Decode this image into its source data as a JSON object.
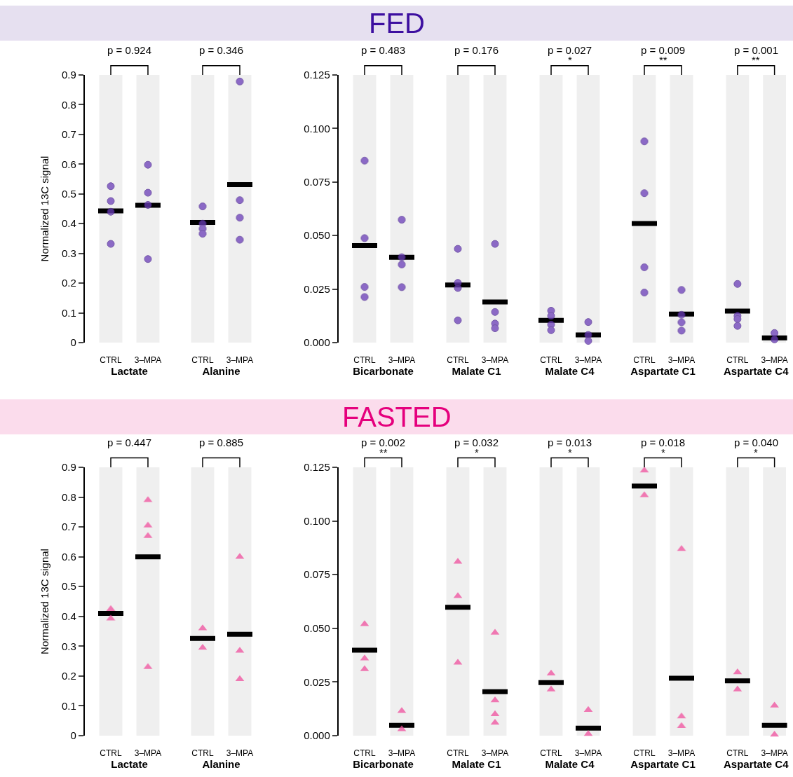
{
  "chart_data": [
    {
      "type": "other",
      "title": "FED",
      "colors": [
        "#e6e0f0",
        "#3d0fa0"
      ]
    },
    {
      "type": "scatter",
      "ylabel": "Normalized 13C signal",
      "xlabel": "Lactate",
      "categories": [
        "CTRL",
        "3–MPA"
      ],
      "annotations": [
        "p = 0.924"
      ],
      "ylim": [
        0,
        0.9
      ],
      "yticks": [
        0,
        0.1,
        0.2,
        0.3,
        0.4,
        0.5,
        0.6,
        0.7,
        0.8,
        0.9
      ],
      "bands": [
        {
          "axis": "x",
          "from": "CTRL",
          "to": "CTRL",
          "color": "#efefef"
        },
        {
          "axis": "x",
          "from": "3–MPA",
          "to": "3–MPA",
          "color": "#efefef"
        }
      ],
      "series": [
        {
          "type": "box",
          "color": "#000000",
          "x": [
            "CTRL",
            "3–MPA"
          ],
          "boxes": [
            {
              "low": 0.443,
              "q1": 0.443,
              "median": 0.443,
              "q3": 0.443,
              "high": 0.443
            },
            {
              "low": 0.462,
              "q1": 0.462,
              "median": 0.462,
              "q3": 0.462,
              "high": 0.462
            }
          ]
        },
        {
          "type": "scatter",
          "marker": "circle",
          "color": "#6a3db8",
          "x": [
            "CTRL",
            "CTRL",
            "CTRL",
            "CTRL",
            "3–MPA",
            "3–MPA",
            "3–MPA",
            "3–MPA"
          ],
          "values": [
            0.526,
            0.476,
            0.44,
            0.332,
            0.598,
            0.504,
            0.463,
            0.281
          ]
        }
      ]
    },
    {
      "type": "scatter",
      "xlabel": "Alanine",
      "categories": [
        "CTRL",
        "3–MPA"
      ],
      "annotations": [
        "p = 0.346"
      ],
      "ylim": [
        0,
        0.9
      ],
      "tick_labels": "x",
      "bands": [
        {
          "axis": "x",
          "from": "CTRL",
          "to": "CTRL",
          "color": "#efefef"
        },
        {
          "axis": "x",
          "from": "3–MPA",
          "to": "3–MPA",
          "color": "#efefef"
        }
      ],
      "series": [
        {
          "type": "box",
          "color": "#000000",
          "x": [
            "CTRL",
            "3–MPA"
          ],
          "boxes": [
            {
              "low": 0.404,
              "q1": 0.404,
              "median": 0.404,
              "q3": 0.404,
              "high": 0.404
            },
            {
              "low": 0.531,
              "q1": 0.531,
              "median": 0.531,
              "q3": 0.531,
              "high": 0.531
            }
          ]
        },
        {
          "type": "scatter",
          "marker": "circle",
          "color": "#6a3db8",
          "x": [
            "CTRL",
            "CTRL",
            "CTRL",
            "CTRL",
            "3–MPA",
            "3–MPA",
            "3–MPA",
            "3–MPA"
          ],
          "values": [
            0.458,
            0.4,
            0.383,
            0.366,
            0.878,
            0.479,
            0.42,
            0.346
          ]
        }
      ]
    },
    {
      "type": "scatter",
      "xlabel": "Bicarbonate",
      "categories": [
        "CTRL",
        "3–MPA"
      ],
      "annotations": [
        "p = 0.483"
      ],
      "ylim": [
        0,
        0.125
      ],
      "yticks": [
        {
          "value": 0,
          "label": "0.000"
        },
        {
          "value": 0.025,
          "label": "0.025"
        },
        {
          "value": 0.05,
          "label": "0.050"
        },
        {
          "value": 0.075,
          "label": "0.075"
        },
        {
          "value": 0.1,
          "label": "0.100"
        },
        {
          "value": 0.125,
          "label": "0.125"
        }
      ],
      "bands": [
        {
          "axis": "x",
          "from": "CTRL",
          "to": "CTRL",
          "color": "#efefef"
        },
        {
          "axis": "x",
          "from": "3–MPA",
          "to": "3–MPA",
          "color": "#efefef"
        }
      ],
      "series": [
        {
          "type": "box",
          "color": "#000000",
          "x": [
            "CTRL",
            "3–MPA"
          ],
          "boxes": [
            {
              "low": 0.0453,
              "q1": 0.0453,
              "median": 0.0453,
              "q3": 0.0453,
              "high": 0.0453
            },
            {
              "low": 0.0398,
              "q1": 0.0398,
              "median": 0.0398,
              "q3": 0.0398,
              "high": 0.0398
            }
          ]
        },
        {
          "type": "scatter",
          "marker": "circle",
          "color": "#6a3db8",
          "x": [
            "CTRL",
            "CTRL",
            "CTRL",
            "CTRL",
            "3–MPA",
            "3–MPA",
            "3–MPA",
            "3–MPA"
          ],
          "values": [
            0.085,
            0.0488,
            0.026,
            0.0213,
            0.0574,
            0.0399,
            0.0365,
            0.0259
          ]
        }
      ]
    },
    {
      "type": "scatter",
      "xlabel": "Malate C1",
      "categories": [
        "CTRL",
        "3–MPA"
      ],
      "annotations": [
        "p = 0.176"
      ],
      "ylim": [
        0,
        0.125
      ],
      "tick_labels": "x",
      "bands": [
        {
          "axis": "x",
          "from": "CTRL",
          "to": "CTRL",
          "color": "#efefef"
        },
        {
          "axis": "x",
          "from": "3–MPA",
          "to": "3–MPA",
          "color": "#efefef"
        }
      ],
      "series": [
        {
          "type": "box",
          "color": "#000000",
          "x": [
            "CTRL",
            "3–MPA"
          ],
          "boxes": [
            {
              "low": 0.0269,
              "q1": 0.0269,
              "median": 0.0269,
              "q3": 0.0269,
              "high": 0.0269
            },
            {
              "low": 0.019,
              "q1": 0.019,
              "median": 0.019,
              "q3": 0.019,
              "high": 0.019
            }
          ]
        },
        {
          "type": "scatter",
          "marker": "circle",
          "color": "#6a3db8",
          "x": [
            "CTRL",
            "CTRL",
            "CTRL",
            "CTRL",
            "3–MPA",
            "3–MPA",
            "3–MPA",
            "3–MPA"
          ],
          "values": [
            0.0438,
            0.0279,
            0.0255,
            0.0104,
            0.0461,
            0.0143,
            0.0089,
            0.0067
          ]
        }
      ]
    },
    {
      "type": "scatter",
      "xlabel": "Malate C4",
      "categories": [
        "CTRL",
        "3–MPA"
      ],
      "annotations": [
        "p = 0.027",
        "*"
      ],
      "ylim": [
        0,
        0.125
      ],
      "tick_labels": "x",
      "bands": [
        {
          "axis": "x",
          "from": "CTRL",
          "to": "CTRL",
          "color": "#efefef"
        },
        {
          "axis": "x",
          "from": "3–MPA",
          "to": "3–MPA",
          "color": "#efefef"
        }
      ],
      "series": [
        {
          "type": "box",
          "color": "#000000",
          "x": [
            "CTRL",
            "3–MPA"
          ],
          "boxes": [
            {
              "low": 0.0104,
              "q1": 0.0104,
              "median": 0.0104,
              "q3": 0.0104,
              "high": 0.0104
            },
            {
              "low": 0.0036,
              "q1": 0.0036,
              "median": 0.0036,
              "q3": 0.0036,
              "high": 0.0036
            }
          ]
        },
        {
          "type": "scatter",
          "marker": "circle",
          "color": "#6a3db8",
          "x": [
            "CTRL",
            "CTRL",
            "CTRL",
            "CTRL",
            "3–MPA",
            "3–MPA",
            "3–MPA"
          ],
          "values": [
            0.0149,
            0.0125,
            0.0084,
            0.0058,
            0.0096,
            0.0036,
            0.0008
          ]
        }
      ]
    },
    {
      "type": "scatter",
      "xlabel": "Aspartate C1",
      "categories": [
        "CTRL",
        "3–MPA"
      ],
      "annotations": [
        "p = 0.009",
        "**"
      ],
      "ylim": [
        0,
        0.125
      ],
      "tick_labels": "x",
      "bands": [
        {
          "axis": "x",
          "from": "CTRL",
          "to": "CTRL",
          "color": "#efefef"
        },
        {
          "axis": "x",
          "from": "3–MPA",
          "to": "3–MPA",
          "color": "#efefef"
        }
      ],
      "series": [
        {
          "type": "box",
          "color": "#000000",
          "x": [
            "CTRL",
            "3–MPA"
          ],
          "boxes": [
            {
              "low": 0.0556,
              "q1": 0.0556,
              "median": 0.0556,
              "q3": 0.0556,
              "high": 0.0556
            },
            {
              "low": 0.0133,
              "q1": 0.0133,
              "median": 0.0133,
              "q3": 0.0133,
              "high": 0.0133
            }
          ]
        },
        {
          "type": "scatter",
          "marker": "circle",
          "color": "#6a3db8",
          "x": [
            "CTRL",
            "CTRL",
            "CTRL",
            "CTRL",
            "3–MPA",
            "3–MPA",
            "3–MPA",
            "3–MPA"
          ],
          "values": [
            0.094,
            0.0698,
            0.0352,
            0.0234,
            0.0246,
            0.013,
            0.0095,
            0.0056
          ]
        }
      ]
    },
    {
      "type": "scatter",
      "xlabel": "Aspartate C4",
      "categories": [
        "CTRL",
        "3–MPA"
      ],
      "annotations": [
        "p = 0.001",
        "**"
      ],
      "ylim": [
        0,
        0.125
      ],
      "tick_labels": "x",
      "bands": [
        {
          "axis": "x",
          "from": "CTRL",
          "to": "CTRL",
          "color": "#efefef"
        },
        {
          "axis": "x",
          "from": "3–MPA",
          "to": "3–MPA",
          "color": "#efefef"
        }
      ],
      "series": [
        {
          "type": "box",
          "color": "#000000",
          "x": [
            "CTRL",
            "3–MPA"
          ],
          "boxes": [
            {
              "low": 0.0147,
              "q1": 0.0147,
              "median": 0.0147,
              "q3": 0.0147,
              "high": 0.0147
            },
            {
              "low": 0.0022,
              "q1": 0.0022,
              "median": 0.0022,
              "q3": 0.0022,
              "high": 0.0022
            }
          ]
        },
        {
          "type": "scatter",
          "marker": "circle",
          "color": "#6a3db8",
          "x": [
            "CTRL",
            "CTRL",
            "CTRL",
            "CTRL",
            "3–MPA",
            "3–MPA"
          ],
          "values": [
            0.0274,
            0.0125,
            0.011,
            0.0078,
            0.0045,
            0.0015
          ]
        }
      ]
    },
    {
      "type": "other",
      "title": "FASTED",
      "colors": [
        "#fbdcec",
        "#e5007d"
      ]
    },
    {
      "type": "scatter",
      "ylabel": "Normalized 13C signal",
      "xlabel": "Lactate",
      "categories": [
        "CTRL",
        "3–MPA"
      ],
      "annotations": [
        "p = 0.447"
      ],
      "ylim": [
        0,
        0.9
      ],
      "yticks": [
        0,
        0.1,
        0.2,
        0.3,
        0.4,
        0.5,
        0.6,
        0.7,
        0.8,
        0.9
      ],
      "bands": [
        {
          "axis": "x",
          "from": "CTRL",
          "to": "CTRL",
          "color": "#efefef"
        },
        {
          "axis": "x",
          "from": "3–MPA",
          "to": "3–MPA",
          "color": "#efefef"
        }
      ],
      "series": [
        {
          "type": "box",
          "color": "#000000",
          "x": [
            "CTRL",
            "3–MPA"
          ],
          "boxes": [
            {
              "low": 0.41,
              "q1": 0.41,
              "median": 0.41,
              "q3": 0.41,
              "high": 0.41
            },
            {
              "low": 0.6,
              "q1": 0.6,
              "median": 0.6,
              "q3": 0.6,
              "high": 0.6
            }
          ]
        },
        {
          "type": "scatter",
          "marker": "triangle",
          "color": "#f0509e",
          "x": [
            "CTRL",
            "CTRL",
            "3–MPA",
            "3–MPA",
            "3–MPA",
            "3–MPA"
          ],
          "values": [
            0.425,
            0.393,
            0.79,
            0.705,
            0.67,
            0.23
          ]
        }
      ]
    },
    {
      "type": "scatter",
      "xlabel": "Alanine",
      "categories": [
        "CTRL",
        "3–MPA"
      ],
      "annotations": [
        "p = 0.885"
      ],
      "ylim": [
        0,
        0.9
      ],
      "tick_labels": "x",
      "bands": [
        {
          "axis": "x",
          "from": "CTRL",
          "to": "CTRL",
          "color": "#efefef"
        },
        {
          "axis": "x",
          "from": "3–MPA",
          "to": "3–MPA",
          "color": "#efefef"
        }
      ],
      "series": [
        {
          "type": "box",
          "color": "#000000",
          "x": [
            "CTRL",
            "3–MPA"
          ],
          "boxes": [
            {
              "low": 0.326,
              "q1": 0.326,
              "median": 0.326,
              "q3": 0.326,
              "high": 0.326
            },
            {
              "low": 0.34,
              "q1": 0.34,
              "median": 0.34,
              "q3": 0.34,
              "high": 0.34
            }
          ]
        },
        {
          "type": "scatter",
          "marker": "triangle",
          "color": "#f0509e",
          "x": [
            "CTRL",
            "CTRL",
            "3–MPA",
            "3–MPA",
            "3–MPA"
          ],
          "values": [
            0.36,
            0.295,
            0.6,
            0.285,
            0.19
          ]
        }
      ]
    },
    {
      "type": "scatter",
      "xlabel": "Bicarbonate",
      "categories": [
        "CTRL",
        "3–MPA"
      ],
      "annotations": [
        "p = 0.002",
        "**"
      ],
      "ylim": [
        0,
        0.125
      ],
      "yticks": [
        {
          "value": 0,
          "label": "0.000"
        },
        {
          "value": 0.025,
          "label": "0.025"
        },
        {
          "value": 0.05,
          "label": "0.050"
        },
        {
          "value": 0.075,
          "label": "0.075"
        },
        {
          "value": 0.1,
          "label": "0.100"
        },
        {
          "value": 0.125,
          "label": "0.125"
        }
      ],
      "bands": [
        {
          "axis": "x",
          "from": "CTRL",
          "to": "CTRL",
          "color": "#efefef"
        },
        {
          "axis": "x",
          "from": "3–MPA",
          "to": "3–MPA",
          "color": "#efefef"
        }
      ],
      "series": [
        {
          "type": "box",
          "color": "#000000",
          "x": [
            "CTRL",
            "3–MPA"
          ],
          "boxes": [
            {
              "low": 0.0398,
              "q1": 0.0398,
              "median": 0.0398,
              "q3": 0.0398,
              "high": 0.0398
            },
            {
              "low": 0.0048,
              "q1": 0.0048,
              "median": 0.0048,
              "q3": 0.0048,
              "high": 0.0048
            }
          ]
        },
        {
          "type": "scatter",
          "marker": "triangle",
          "color": "#f0509e",
          "x": [
            "CTRL",
            "CTRL",
            "CTRL",
            "3–MPA",
            "3–MPA"
          ],
          "values": [
            0.052,
            0.036,
            0.031,
            0.0115,
            0.003
          ]
        }
      ]
    },
    {
      "type": "scatter",
      "xlabel": "Malate C1",
      "categories": [
        "CTRL",
        "3–MPA"
      ],
      "annotations": [
        "p = 0.032",
        "*"
      ],
      "ylim": [
        0,
        0.125
      ],
      "tick_labels": "x",
      "bands": [
        {
          "axis": "x",
          "from": "CTRL",
          "to": "CTRL",
          "color": "#efefef"
        },
        {
          "axis": "x",
          "from": "3–MPA",
          "to": "3–MPA",
          "color": "#efefef"
        }
      ],
      "series": [
        {
          "type": "box",
          "color": "#000000",
          "x": [
            "CTRL",
            "3–MPA"
          ],
          "boxes": [
            {
              "low": 0.0598,
              "q1": 0.0598,
              "median": 0.0598,
              "q3": 0.0598,
              "high": 0.0598
            },
            {
              "low": 0.0205,
              "q1": 0.0205,
              "median": 0.0205,
              "q3": 0.0205,
              "high": 0.0205
            }
          ]
        },
        {
          "type": "scatter",
          "marker": "triangle",
          "color": "#f0509e",
          "x": [
            "CTRL",
            "CTRL",
            "CTRL",
            "3–MPA",
            "3–MPA",
            "3–MPA",
            "3–MPA"
          ],
          "values": [
            0.081,
            0.065,
            0.034,
            0.048,
            0.0165,
            0.01,
            0.006
          ]
        }
      ]
    },
    {
      "type": "scatter",
      "xlabel": "Malate C4",
      "categories": [
        "CTRL",
        "3–MPA"
      ],
      "annotations": [
        "p = 0.013",
        "*"
      ],
      "ylim": [
        0,
        0.125
      ],
      "tick_labels": "x",
      "bands": [
        {
          "axis": "x",
          "from": "CTRL",
          "to": "CTRL",
          "color": "#efefef"
        },
        {
          "axis": "x",
          "from": "3–MPA",
          "to": "3–MPA",
          "color": "#efefef"
        }
      ],
      "series": [
        {
          "type": "box",
          "color": "#000000",
          "x": [
            "CTRL",
            "3–MPA"
          ],
          "boxes": [
            {
              "low": 0.0247,
              "q1": 0.0247,
              "median": 0.0247,
              "q3": 0.0247,
              "high": 0.0247
            },
            {
              "low": 0.0035,
              "q1": 0.0035,
              "median": 0.0035,
              "q3": 0.0035,
              "high": 0.0035
            }
          ]
        },
        {
          "type": "scatter",
          "marker": "triangle",
          "color": "#f0509e",
          "x": [
            "CTRL",
            "CTRL",
            "3–MPA",
            "3–MPA"
          ],
          "values": [
            0.029,
            0.0215,
            0.012,
            0.0008
          ]
        }
      ]
    },
    {
      "type": "scatter",
      "xlabel": "Aspartate C1",
      "categories": [
        "CTRL",
        "3–MPA"
      ],
      "annotations": [
        "p = 0.018",
        "*"
      ],
      "ylim": [
        0,
        0.125
      ],
      "tick_labels": "x",
      "bands": [
        {
          "axis": "x",
          "from": "CTRL",
          "to": "CTRL",
          "color": "#efefef"
        },
        {
          "axis": "x",
          "from": "3–MPA",
          "to": "3–MPA",
          "color": "#efefef"
        }
      ],
      "series": [
        {
          "type": "box",
          "color": "#000000",
          "x": [
            "CTRL",
            "3–MPA"
          ],
          "boxes": [
            {
              "low": 0.1163,
              "q1": 0.1163,
              "median": 0.1163,
              "q3": 0.1163,
              "high": 0.1163
            },
            {
              "low": 0.0268,
              "q1": 0.0268,
              "median": 0.0268,
              "q3": 0.0268,
              "high": 0.0268
            }
          ]
        },
        {
          "type": "scatter",
          "marker": "triangle",
          "color": "#f0509e",
          "x": [
            "CTRL",
            "CTRL",
            "3–MPA",
            "3–MPA",
            "3–MPA"
          ],
          "values": [
            0.1235,
            0.112,
            0.087,
            0.009,
            0.0045
          ]
        }
      ]
    },
    {
      "type": "scatter",
      "xlabel": "Aspartate C4",
      "categories": [
        "CTRL",
        "3–MPA"
      ],
      "annotations": [
        "p = 0.040",
        "*"
      ],
      "ylim": [
        0,
        0.125
      ],
      "tick_labels": "x",
      "bands": [
        {
          "axis": "x",
          "from": "CTRL",
          "to": "CTRL",
          "color": "#efefef"
        },
        {
          "axis": "x",
          "from": "3–MPA",
          "to": "3–MPA",
          "color": "#efefef"
        }
      ],
      "series": [
        {
          "type": "box",
          "color": "#000000",
          "x": [
            "CTRL",
            "3–MPA"
          ],
          "boxes": [
            {
              "low": 0.0255,
              "q1": 0.0255,
              "median": 0.0255,
              "q3": 0.0255,
              "high": 0.0255
            },
            {
              "low": 0.0048,
              "q1": 0.0048,
              "median": 0.0048,
              "q3": 0.0048,
              "high": 0.0048
            }
          ]
        },
        {
          "type": "scatter",
          "marker": "triangle",
          "color": "#f0509e",
          "x": [
            "CTRL",
            "CTRL",
            "3–MPA",
            "3–MPA"
          ],
          "values": [
            0.0295,
            0.0215,
            0.014,
            0.0005
          ]
        }
      ]
    }
  ]
}
